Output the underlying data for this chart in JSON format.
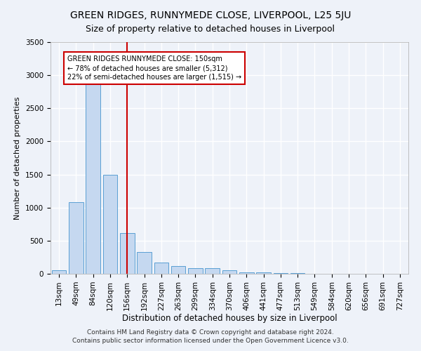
{
  "title": "GREEN RIDGES, RUNNYMEDE CLOSE, LIVERPOOL, L25 5JU",
  "subtitle": "Size of property relative to detached houses in Liverpool",
  "xlabel": "Distribution of detached houses by size in Liverpool",
  "ylabel": "Number of detached properties",
  "categories": [
    "13sqm",
    "49sqm",
    "84sqm",
    "120sqm",
    "156sqm",
    "192sqm",
    "227sqm",
    "263sqm",
    "299sqm",
    "334sqm",
    "370sqm",
    "406sqm",
    "441sqm",
    "477sqm",
    "513sqm",
    "549sqm",
    "584sqm",
    "620sqm",
    "656sqm",
    "691sqm",
    "727sqm"
  ],
  "values": [
    50,
    1080,
    2950,
    1500,
    620,
    330,
    170,
    120,
    80,
    80,
    50,
    20,
    20,
    10,
    10,
    0,
    0,
    0,
    0,
    0,
    0
  ],
  "bar_color": "#c5d8f0",
  "bar_edge_color": "#5a9fd4",
  "vline_color": "#cc0000",
  "vline_x_index": 4,
  "annotation_text": "GREEN RIDGES RUNNYMEDE CLOSE: 150sqm\n← 78% of detached houses are smaller (5,312)\n22% of semi-detached houses are larger (1,515) →",
  "annotation_box_facecolor": "#ffffff",
  "annotation_box_edgecolor": "#cc0000",
  "footer_line1": "Contains HM Land Registry data © Crown copyright and database right 2024.",
  "footer_line2": "Contains public sector information licensed under the Open Government Licence v3.0.",
  "ylim": [
    0,
    3500
  ],
  "yticks": [
    0,
    500,
    1000,
    1500,
    2000,
    2500,
    3000,
    3500
  ],
  "background_color": "#eef2f9",
  "grid_color": "#ffffff",
  "title_fontsize": 10,
  "xlabel_fontsize": 8.5,
  "ylabel_fontsize": 8,
  "tick_fontsize": 7.5,
  "annotation_fontsize": 7,
  "footer_fontsize": 6.5
}
